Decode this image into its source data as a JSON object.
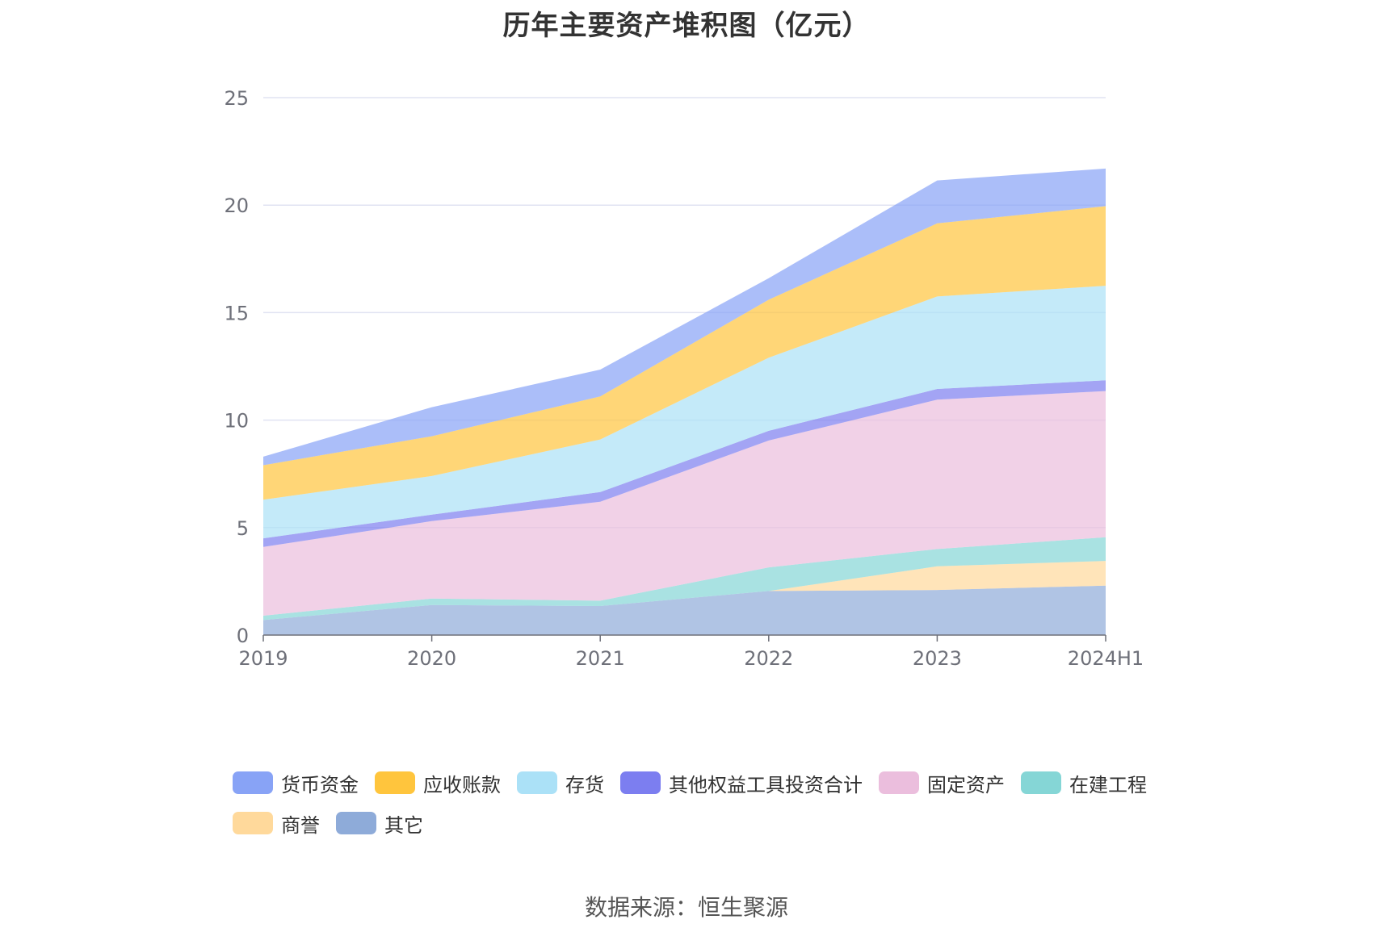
{
  "title": "历年主要资产堆积图（亿元）",
  "source": "数据来源：恒生聚源",
  "chart_data": {
    "type": "area",
    "stacked": true,
    "categories": [
      "2019",
      "2020",
      "2021",
      "2022",
      "2023",
      "2024H1"
    ],
    "y_ticks": [
      "0",
      "5",
      "10",
      "15",
      "20",
      "25"
    ],
    "ylim": [
      0,
      25
    ],
    "grid": true,
    "legend_position": "bottom",
    "series": [
      {
        "name": "其它",
        "color": "#8eabd9",
        "values": [
          0.7,
          1.4,
          1.35,
          2.05,
          2.1,
          2.3
        ]
      },
      {
        "name": "商誉",
        "color": "#ffd99b",
        "values": [
          0.0,
          0.0,
          0.0,
          0.0,
          1.1,
          1.15
        ]
      },
      {
        "name": "在建工程",
        "color": "#85d6d6",
        "values": [
          0.2,
          0.3,
          0.25,
          1.1,
          0.8,
          1.1
        ]
      },
      {
        "name": "固定资产",
        "color": "#ebbedd",
        "values": [
          3.2,
          3.6,
          4.6,
          5.9,
          6.95,
          6.8
        ]
      },
      {
        "name": "其他权益工具投资合计",
        "color": "#7c7ef0",
        "values": [
          0.4,
          0.3,
          0.45,
          0.45,
          0.5,
          0.5
        ]
      },
      {
        "name": "存货",
        "color": "#abe1f7",
        "values": [
          1.8,
          1.8,
          2.45,
          3.4,
          4.3,
          4.4
        ]
      },
      {
        "name": "应收账款",
        "color": "#ffc53d",
        "values": [
          1.6,
          1.85,
          2.0,
          2.7,
          3.4,
          3.7
        ]
      },
      {
        "name": "货币资金",
        "color": "#88a3f6",
        "values": [
          0.4,
          1.35,
          1.25,
          1.0,
          2.0,
          1.75
        ]
      }
    ],
    "legend_order": [
      "货币资金",
      "应收账款",
      "存货",
      "其他权益工具投资合计",
      "固定资产",
      "在建工程",
      "商誉",
      "其它"
    ]
  }
}
